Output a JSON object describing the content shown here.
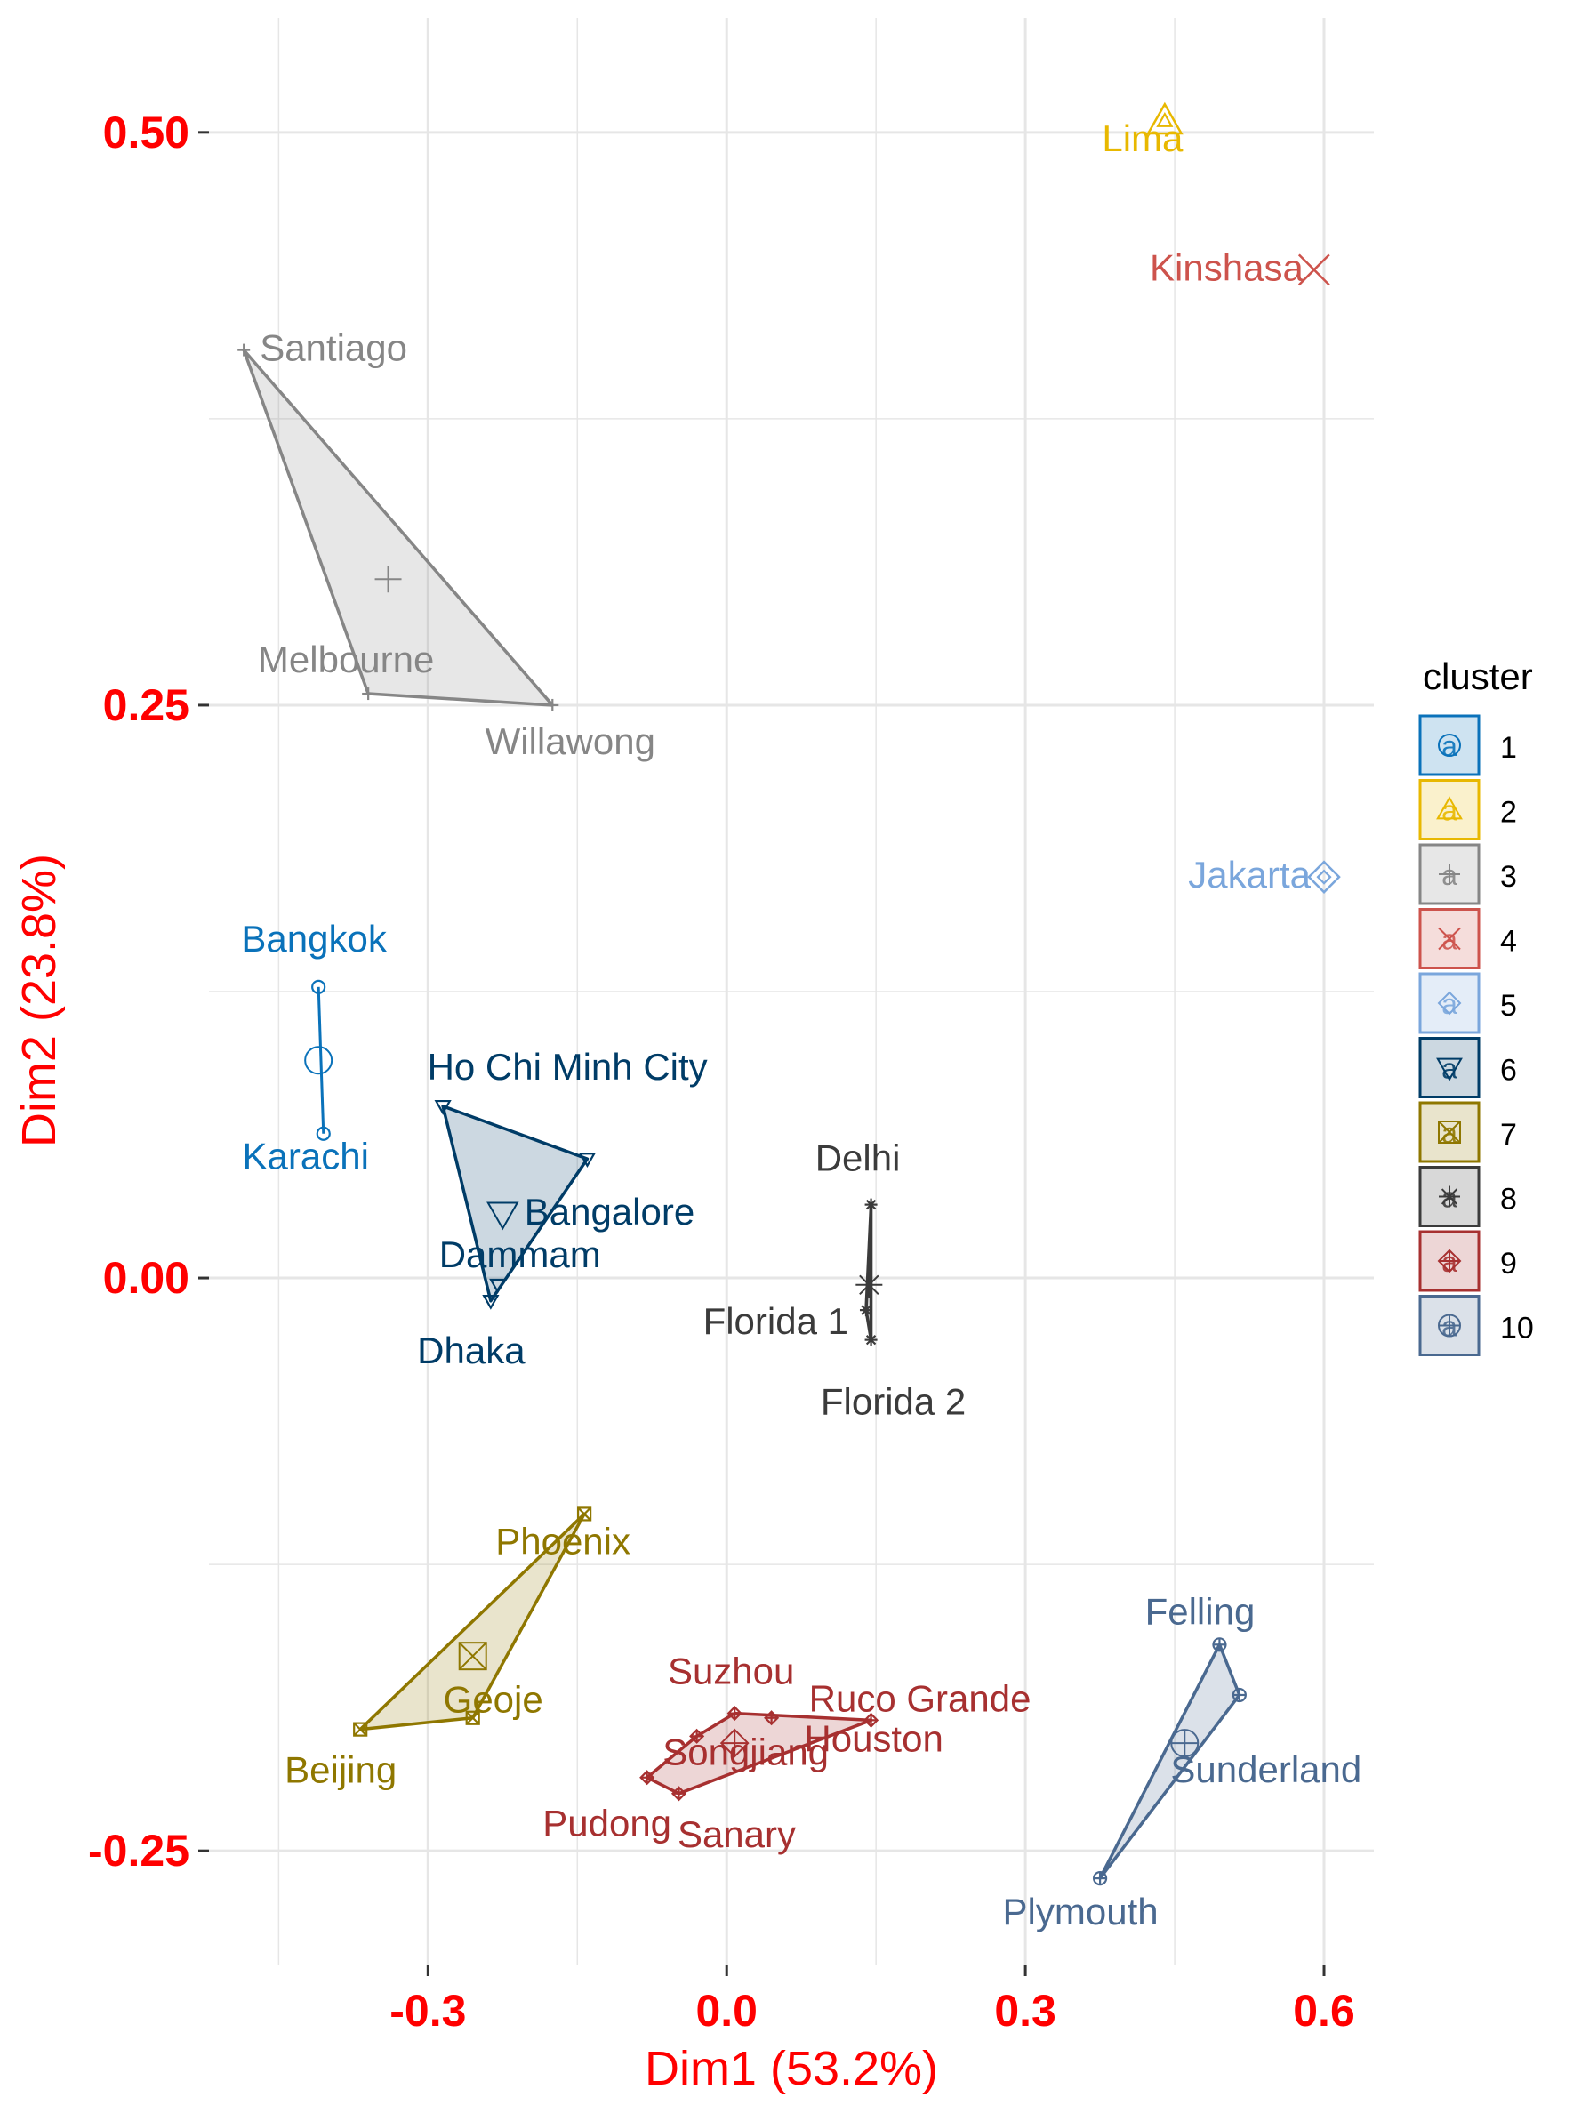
{
  "chart_data": {
    "type": "scatter",
    "title": "",
    "xlabel": "Dim1 (53.2%)",
    "ylabel": "Dim2 (23.8%)",
    "xlim": [
      -0.52,
      0.65
    ],
    "ylim": [
      -0.3,
      0.55
    ],
    "x_ticks": [
      -0.3,
      0.0,
      0.3,
      0.6
    ],
    "x_tick_labels": [
      "-0.3",
      "0.0",
      "0.3",
      "0.6"
    ],
    "y_ticks": [
      -0.25,
      0.0,
      0.25,
      0.5
    ],
    "y_tick_labels": [
      "-0.25",
      "0.00",
      "0.25",
      "0.50"
    ],
    "grid": true,
    "legend": {
      "title": "cluster",
      "position": "right",
      "entries": [
        "1",
        "2",
        "3",
        "4",
        "5",
        "6",
        "7",
        "8",
        "9",
        "10"
      ]
    },
    "colors": {
      "axis_text": "#ff0000",
      "grid": "#e6e6e6"
    },
    "series": [
      {
        "name": "1",
        "color": "#0a72ba",
        "marker": "circle",
        "points": [
          {
            "label": "Bangkok",
            "x": -0.41,
            "y": 0.127
          },
          {
            "label": "Karachi",
            "x": -0.405,
            "y": 0.063
          }
        ],
        "center": {
          "x": -0.41,
          "y": 0.095
        }
      },
      {
        "name": "2",
        "color": "#e8b800",
        "marker": "triangle",
        "points": [
          {
            "label": "Lima",
            "x": 0.44,
            "y": 0.505
          }
        ],
        "center": {
          "x": 0.44,
          "y": 0.505
        }
      },
      {
        "name": "3",
        "color": "#868686",
        "marker": "plus",
        "points": [
          {
            "label": "Santiago",
            "x": -0.485,
            "y": 0.405
          },
          {
            "label": "Melbourne",
            "x": -0.36,
            "y": 0.255
          },
          {
            "label": "Willawong",
            "x": -0.175,
            "y": 0.25
          }
        ],
        "center": {
          "x": -0.34,
          "y": 0.305
        }
      },
      {
        "name": "4",
        "color": "#cd534c",
        "marker": "cross",
        "points": [
          {
            "label": "Kinshasa",
            "x": 0.59,
            "y": 0.44
          }
        ],
        "center": {
          "x": 0.59,
          "y": 0.44
        }
      },
      {
        "name": "5",
        "color": "#7aa6dc",
        "marker": "diamond",
        "points": [
          {
            "label": "Jakarta",
            "x": 0.6,
            "y": 0.175
          }
        ],
        "center": {
          "x": 0.6,
          "y": 0.175
        }
      },
      {
        "name": "6",
        "color": "#003c67",
        "marker": "triangle-down",
        "points": [
          {
            "label": "Ho Chi Minh City",
            "x": -0.285,
            "y": 0.075
          },
          {
            "label": "Bangalore",
            "x": -0.14,
            "y": 0.052
          },
          {
            "label": "Dammam",
            "x": -0.23,
            "y": -0.003
          },
          {
            "label": "Dhaka",
            "x": -0.237,
            "y": -0.01
          }
        ],
        "center": {
          "x": -0.225,
          "y": 0.028
        }
      },
      {
        "name": "7",
        "color": "#8f7700",
        "marker": "square-x",
        "points": [
          {
            "label": "Phoenix",
            "x": -0.143,
            "y": -0.103
          },
          {
            "label": "Geoje",
            "x": -0.255,
            "y": -0.192
          },
          {
            "label": "Beijing",
            "x": -0.368,
            "y": -0.197
          }
        ],
        "center": {
          "x": -0.255,
          "y": -0.165
        }
      },
      {
        "name": "8",
        "color": "#3b3b3b",
        "marker": "asterisk",
        "points": [
          {
            "label": "Delhi",
            "x": 0.145,
            "y": 0.032
          },
          {
            "label": "Florida 1",
            "x": 0.14,
            "y": -0.014
          },
          {
            "label": "Florida 2",
            "x": 0.145,
            "y": -0.027
          }
        ],
        "center": {
          "x": 0.143,
          "y": -0.003
        }
      },
      {
        "name": "9",
        "color": "#a73030",
        "marker": "diamond-plus",
        "points": [
          {
            "label": "Suzhou",
            "x": 0.008,
            "y": -0.19
          },
          {
            "label": "Ruco Grande",
            "x": 0.145,
            "y": -0.193
          },
          {
            "label": "Houston",
            "x": 0.045,
            "y": -0.192
          },
          {
            "label": "Songjiang",
            "x": -0.03,
            "y": -0.2
          },
          {
            "label": "Pudong",
            "x": -0.08,
            "y": -0.218
          },
          {
            "label": "Sanary",
            "x": -0.048,
            "y": -0.225
          }
        ],
        "center": {
          "x": 0.008,
          "y": -0.203
        }
      },
      {
        "name": "10",
        "color": "#4a6990",
        "marker": "circle-plus",
        "points": [
          {
            "label": "Felling",
            "x": 0.495,
            "y": -0.16
          },
          {
            "label": "Sunderland",
            "x": 0.515,
            "y": -0.182
          },
          {
            "label": "Plymouth",
            "x": 0.375,
            "y": -0.262
          }
        ],
        "center": {
          "x": 0.46,
          "y": -0.203
        }
      }
    ]
  }
}
